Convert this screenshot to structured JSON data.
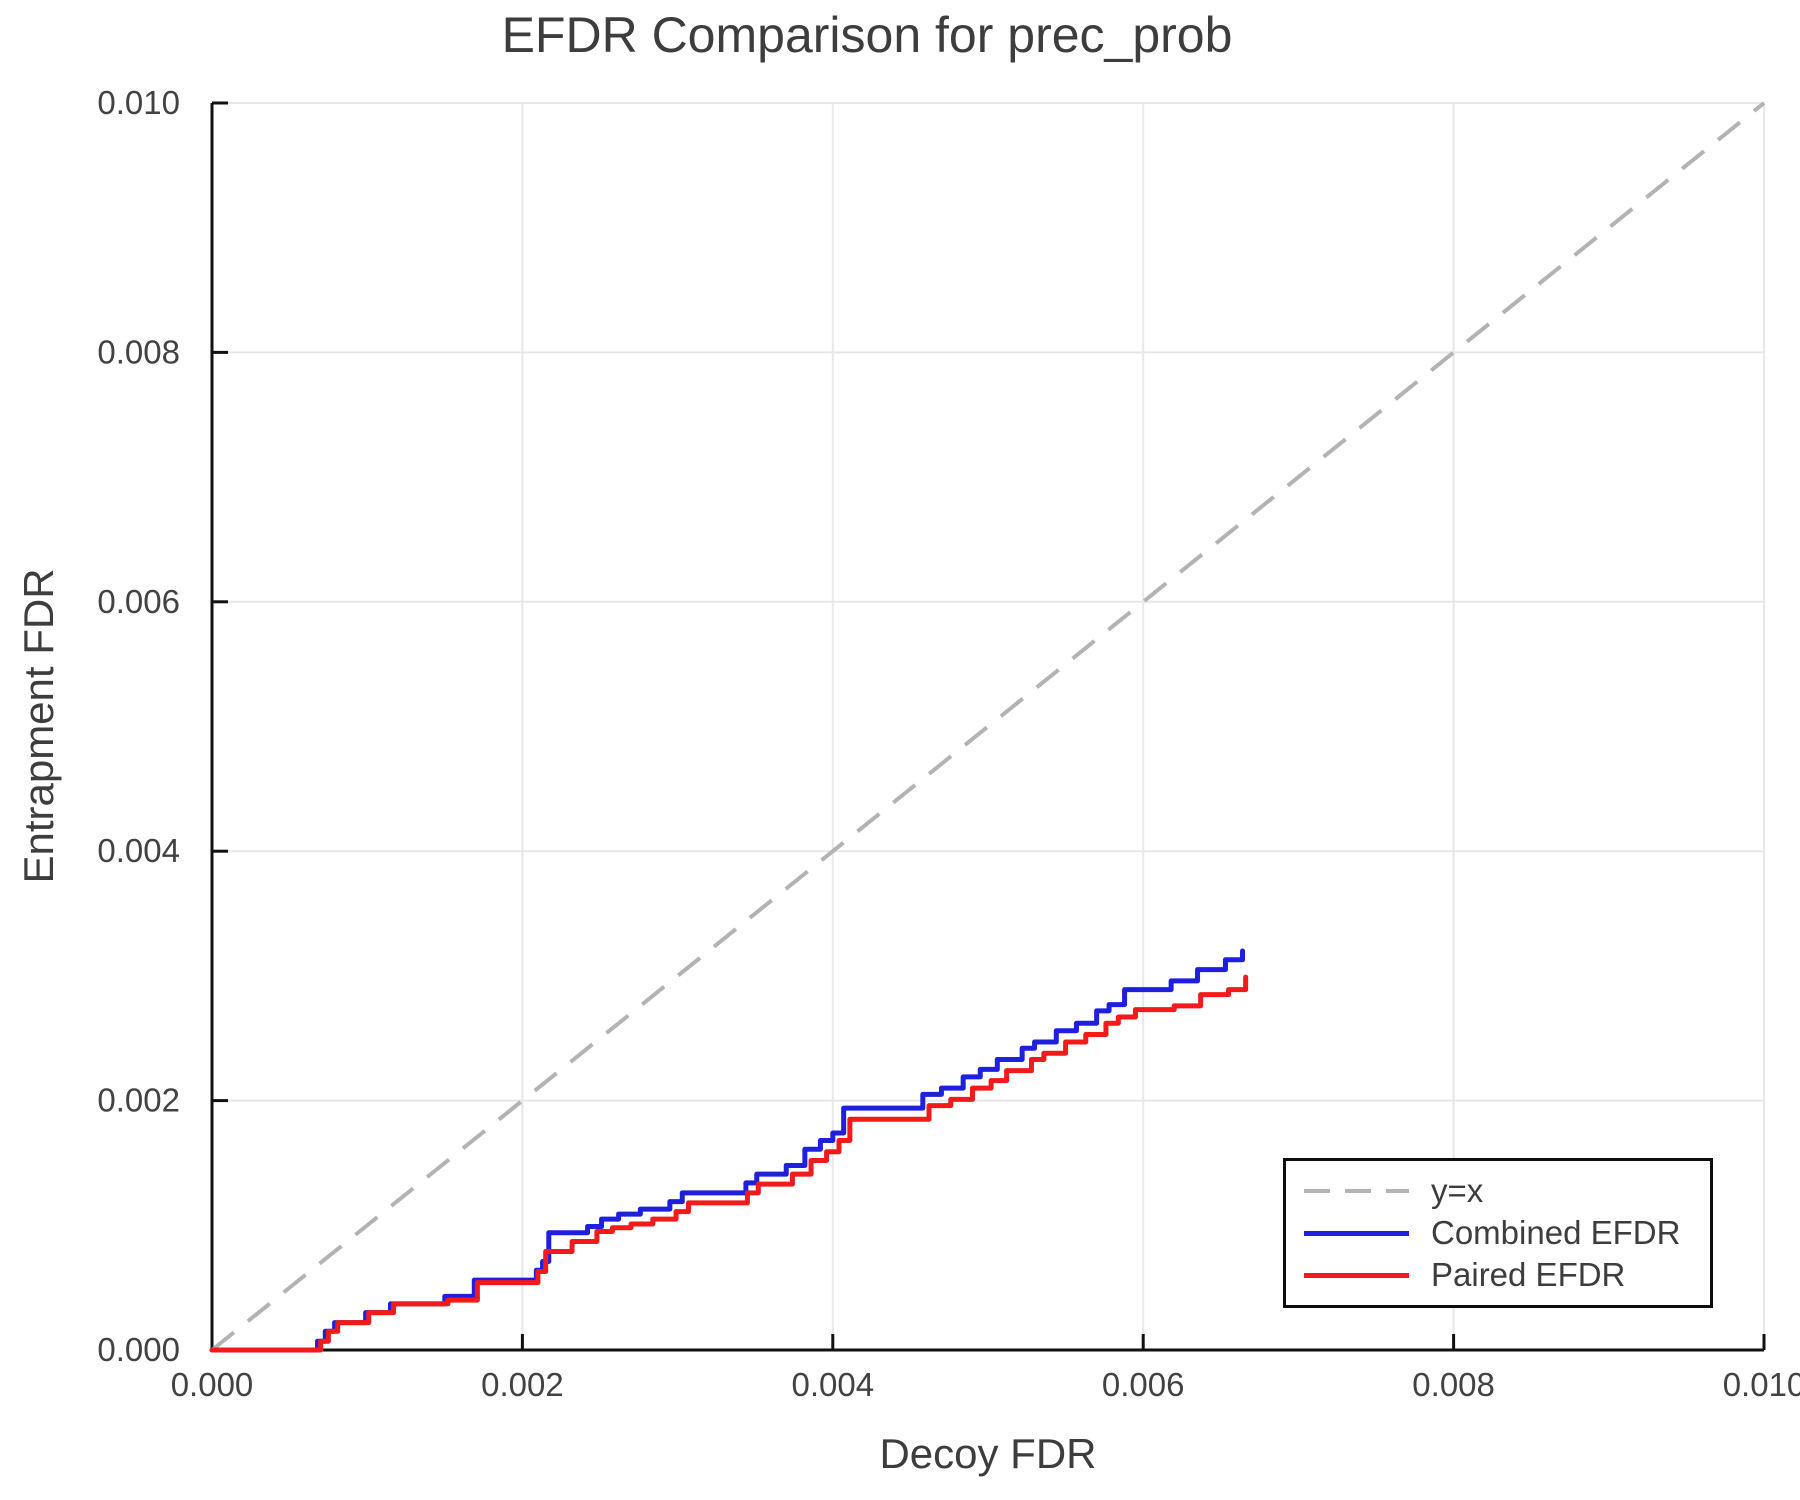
{
  "chart_data": {
    "type": "line",
    "title": "EFDR Comparison for prec_prob",
    "xlabel": "Decoy FDR",
    "ylabel": "Entrapment FDR",
    "xlim": [
      0.0,
      0.01
    ],
    "ylim": [
      0.0,
      0.01
    ],
    "grid": true,
    "legend_position": "bottom-right",
    "background_color": "#ffffff",
    "grid_color": "#e7e7e7",
    "axis_color": "#111111",
    "tick_label_color": "#424242",
    "text_color": "#3d3d3d",
    "x_ticks": {
      "values": [
        0.0,
        0.002,
        0.004,
        0.006,
        0.008,
        0.01
      ],
      "labels": [
        "0.000",
        "0.002",
        "0.004",
        "0.006",
        "0.008",
        "0.010"
      ]
    },
    "y_ticks": {
      "values": [
        0.0,
        0.002,
        0.004,
        0.006,
        0.008,
        0.01
      ],
      "labels": [
        "0.000",
        "0.002",
        "0.004",
        "0.006",
        "0.008",
        "0.010"
      ]
    },
    "series": [
      {
        "name": "y=x",
        "color": "#b3b3b3",
        "style": "dashed",
        "width": 4,
        "interpolation": "linear",
        "points": [
          [
            0.0,
            0.0
          ],
          [
            0.01,
            0.01
          ]
        ]
      },
      {
        "name": "Combined EFDR",
        "color": "#1f1fe0",
        "style": "solid",
        "width": 5,
        "interpolation": "step-after",
        "points": [
          [
            0.0,
            0.0
          ],
          [
            0.00068,
            7e-05
          ],
          [
            0.00073,
            0.00015
          ],
          [
            0.00079,
            0.00022
          ],
          [
            0.00099,
            0.0003
          ],
          [
            0.00115,
            0.00037
          ],
          [
            0.0015,
            0.00043
          ],
          [
            0.00169,
            0.00056
          ],
          [
            0.00209,
            0.00064
          ],
          [
            0.00213,
            0.00071
          ],
          [
            0.00217,
            0.00094
          ],
          [
            0.00242,
            0.00099
          ],
          [
            0.00251,
            0.00105
          ],
          [
            0.00262,
            0.00109
          ],
          [
            0.00276,
            0.00113
          ],
          [
            0.00295,
            0.00119
          ],
          [
            0.00303,
            0.00126
          ],
          [
            0.00344,
            0.00134
          ],
          [
            0.00351,
            0.00141
          ],
          [
            0.0037,
            0.00148
          ],
          [
            0.00382,
            0.00161
          ],
          [
            0.00392,
            0.00168
          ],
          [
            0.004,
            0.00174
          ],
          [
            0.00407,
            0.00194
          ],
          [
            0.00458,
            0.00205
          ],
          [
            0.0047,
            0.0021
          ],
          [
            0.00484,
            0.00219
          ],
          [
            0.00495,
            0.00225
          ],
          [
            0.00506,
            0.00233
          ],
          [
            0.00522,
            0.00242
          ],
          [
            0.0053,
            0.00247
          ],
          [
            0.00544,
            0.00256
          ],
          [
            0.00557,
            0.00262
          ],
          [
            0.0057,
            0.00272
          ],
          [
            0.00578,
            0.00277
          ],
          [
            0.00588,
            0.00289
          ],
          [
            0.00618,
            0.00296
          ],
          [
            0.00635,
            0.00305
          ],
          [
            0.00653,
            0.00313
          ],
          [
            0.00664,
            0.0032
          ]
        ]
      },
      {
        "name": "Paired EFDR",
        "color": "#f21a1a",
        "style": "solid",
        "width": 5,
        "interpolation": "step-after",
        "points": [
          [
            0.0,
            0.0
          ],
          [
            0.0007,
            7e-05
          ],
          [
            0.00075,
            0.00015
          ],
          [
            0.00081,
            0.00022
          ],
          [
            0.00101,
            0.0003
          ],
          [
            0.00117,
            0.00037
          ],
          [
            0.00152,
            0.0004
          ],
          [
            0.00171,
            0.00054
          ],
          [
            0.0021,
            0.00063
          ],
          [
            0.00215,
            0.00079
          ],
          [
            0.00232,
            0.00087
          ],
          [
            0.00248,
            0.00095
          ],
          [
            0.00258,
            0.00098
          ],
          [
            0.0027,
            0.00101
          ],
          [
            0.00284,
            0.00105
          ],
          [
            0.00299,
            0.00111
          ],
          [
            0.00307,
            0.00118
          ],
          [
            0.00345,
            0.00126
          ],
          [
            0.00352,
            0.00133
          ],
          [
            0.00374,
            0.00141
          ],
          [
            0.00386,
            0.00152
          ],
          [
            0.00396,
            0.00159
          ],
          [
            0.00404,
            0.00168
          ],
          [
            0.00411,
            0.00185
          ],
          [
            0.00462,
            0.00196
          ],
          [
            0.00476,
            0.00201
          ],
          [
            0.0049,
            0.0021
          ],
          [
            0.00502,
            0.00216
          ],
          [
            0.00512,
            0.00224
          ],
          [
            0.00528,
            0.00233
          ],
          [
            0.00536,
            0.00238
          ],
          [
            0.0055,
            0.00247
          ],
          [
            0.00563,
            0.00253
          ],
          [
            0.00576,
            0.00262
          ],
          [
            0.00584,
            0.00267
          ],
          [
            0.00595,
            0.00273
          ],
          [
            0.0062,
            0.00276
          ],
          [
            0.00637,
            0.00285
          ],
          [
            0.00655,
            0.00289
          ],
          [
            0.00666,
            0.00299
          ]
        ]
      }
    ]
  }
}
